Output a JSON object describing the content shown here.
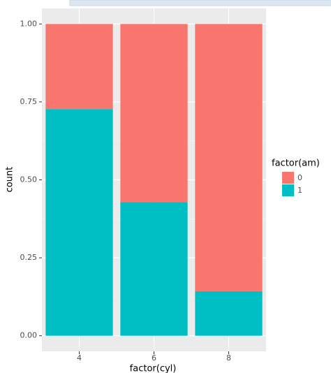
{
  "chart_data": {
    "type": "bar",
    "stacked": true,
    "x_label": "factor(cyl)",
    "y_label": "count",
    "categories": [
      "4",
      "6",
      "8"
    ],
    "series": [
      {
        "name": "0",
        "color": "#F8766D",
        "values": [
          0.273,
          0.571,
          0.857
        ]
      },
      {
        "name": "1",
        "color": "#00BFC4",
        "values": [
          0.727,
          0.429,
          0.143
        ]
      }
    ],
    "stack_order": [
      "1",
      "0"
    ],
    "legend_title": "factor(am)",
    "legend_position": "right",
    "ylim": [
      -0.05,
      1.05
    ],
    "yticks": [
      {
        "value": 0,
        "label": "0.00"
      },
      0.25,
      {
        "value": 0.5,
        "label": "0.50"
      },
      0.75,
      {
        "value": 1,
        "label": "1.00"
      }
    ],
    "grid": true
  }
}
